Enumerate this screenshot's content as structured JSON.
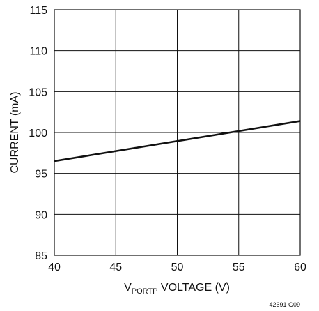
{
  "chart_data": {
    "type": "line",
    "xlabel_main": "V",
    "xlabel_sub": "PORTP",
    "xlabel_rest": " VOLTAGE (V)",
    "ylabel": "CURRENT (mA)",
    "xlim": [
      40,
      60
    ],
    "ylim": [
      85,
      115
    ],
    "xticks": [
      "40",
      "45",
      "50",
      "55",
      "60"
    ],
    "yticks": [
      "85",
      "90",
      "95",
      "100",
      "105",
      "110",
      "115"
    ],
    "grid": true,
    "series": [
      {
        "x": [
          40,
          60
        ],
        "y": [
          96.5,
          101.4
        ]
      }
    ]
  },
  "figure_code": "42691 G09"
}
